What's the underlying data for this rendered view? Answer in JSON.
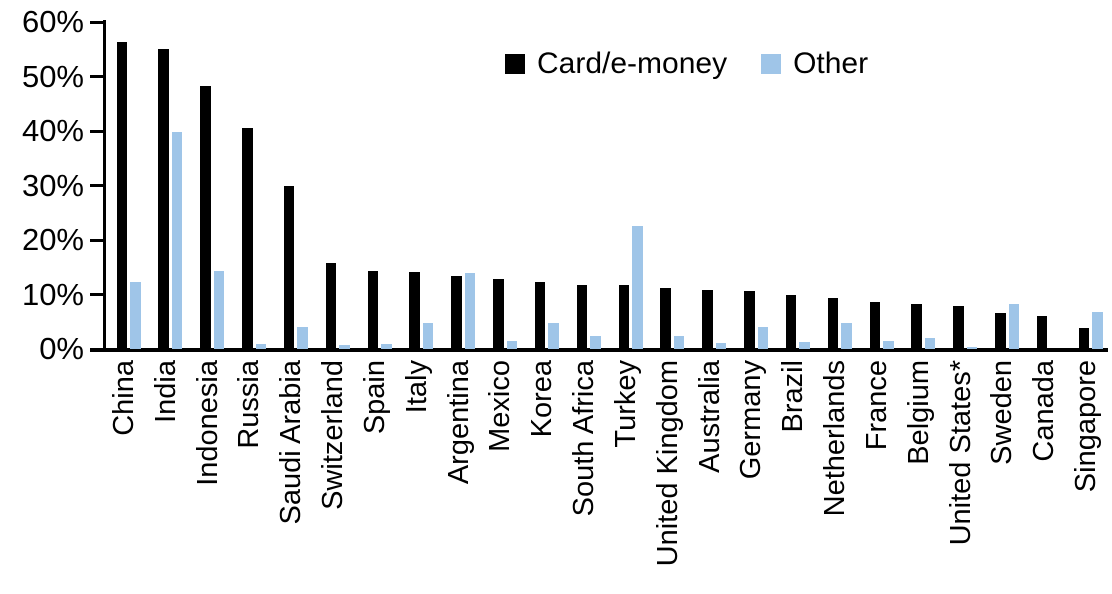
{
  "chart_data": {
    "type": "bar",
    "title": "",
    "xlabel": "",
    "ylabel": "",
    "ylim": [
      0,
      60
    ],
    "ytick_step": 10,
    "ytick_labels": [
      "0%",
      "10%",
      "20%",
      "30%",
      "40%",
      "50%",
      "60%"
    ],
    "grid": false,
    "legend_position": "top-center",
    "categories": [
      "China",
      "India",
      "Indonesia",
      "Russia",
      "Saudi Arabia",
      "Switzerland",
      "Spain",
      "Italy",
      "Argentina",
      "Mexico",
      "Korea",
      "South Africa",
      "Turkey",
      "United Kingdom",
      "Australia",
      "Germany",
      "Brazil",
      "Netherlands",
      "France",
      "Belgium",
      "United States*",
      "Sweden",
      "Canada",
      "Singapore"
    ],
    "series": [
      {
        "name": "Card/e-money",
        "color": "#000000",
        "values": [
          56.3,
          55.0,
          48.2,
          40.5,
          29.9,
          15.7,
          14.3,
          14.1,
          13.4,
          12.9,
          12.3,
          11.8,
          11.7,
          11.2,
          10.9,
          10.6,
          10.0,
          9.3,
          8.7,
          8.2,
          7.9,
          6.6,
          6.1,
          3.9
        ]
      },
      {
        "name": "Other",
        "color": "#9FC5E8",
        "values": [
          12.3,
          39.8,
          14.4,
          1.0,
          4.0,
          0.8,
          1.0,
          4.7,
          13.9,
          1.4,
          4.7,
          2.4,
          22.6,
          2.3,
          1.1,
          4.0,
          1.2,
          4.8,
          1.5,
          2.0,
          0.4,
          8.3,
          0.0,
          6.8
        ]
      }
    ]
  }
}
